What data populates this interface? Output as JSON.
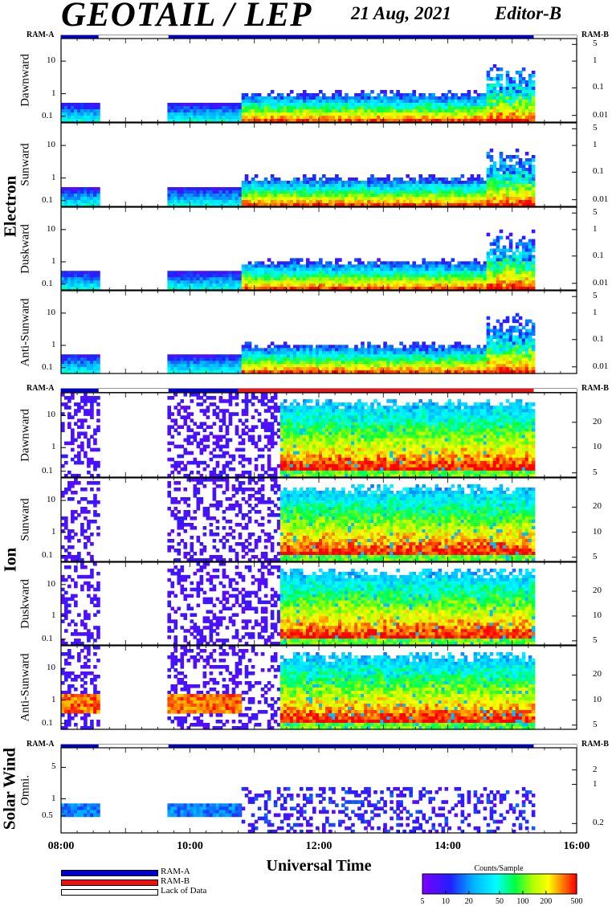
{
  "header": {
    "title": "GEOTAIL / LEP",
    "date": "21 Aug, 2021",
    "editor": "Editor-B"
  },
  "chart_data": {
    "type": "heatmap",
    "x_axis": {
      "label": "Universal Time",
      "ticks": [
        "08:00",
        "10:00",
        "12:00",
        "14:00",
        "16:00"
      ],
      "range": [
        "08:00",
        "16:00"
      ]
    },
    "status_bar_labels": {
      "left": "RAM-A",
      "right": "RAM-B"
    },
    "groups": [
      {
        "name": "Electron",
        "status_segments": [
          {
            "from": "08:00",
            "to": "08:35",
            "state": "RAM-A"
          },
          {
            "from": "08:35",
            "to": "09:40",
            "state": "Lack of Data"
          },
          {
            "from": "09:40",
            "to": "15:20",
            "state": "RAM-A"
          },
          {
            "from": "15:20",
            "to": "16:00",
            "state": "Lack of Data"
          }
        ],
        "panels": [
          {
            "name": "Dawnward",
            "left_ticks": [
              "10",
              "1",
              "0.1"
            ],
            "right_ticks": [
              "5",
              "1",
              "0.1",
              "0.01"
            ]
          },
          {
            "name": "Sunward",
            "left_ticks": [
              "10",
              "1",
              "0.1"
            ],
            "right_ticks": [
              "5",
              "1",
              "0.1",
              "0.01"
            ]
          },
          {
            "name": "Duskward",
            "left_ticks": [
              "10",
              "1",
              "0.1"
            ],
            "right_ticks": [
              "5",
              "1",
              "0.1",
              "0.01"
            ]
          },
          {
            "name": "Anti-Sunward",
            "left_ticks": [
              "10",
              "1",
              "0.1"
            ],
            "right_ticks": [
              "5",
              "1",
              "0.1",
              "0.01"
            ]
          }
        ]
      },
      {
        "name": "Ion",
        "status_segments": [
          {
            "from": "08:00",
            "to": "08:35",
            "state": "RAM-A"
          },
          {
            "from": "08:35",
            "to": "09:40",
            "state": "Lack of Data"
          },
          {
            "from": "09:40",
            "to": "10:45",
            "state": "RAM-A"
          },
          {
            "from": "10:45",
            "to": "15:20",
            "state": "RAM-B"
          },
          {
            "from": "15:20",
            "to": "16:00",
            "state": "Lack of Data"
          }
        ],
        "panels": [
          {
            "name": "Dawnward",
            "left_ticks": [
              "10",
              "1",
              "0.1"
            ],
            "right_ticks": [
              "20",
              "10",
              "5"
            ]
          },
          {
            "name": "Sunward",
            "left_ticks": [
              "10",
              "1",
              "0.1"
            ],
            "right_ticks": [
              "20",
              "10",
              "5"
            ]
          },
          {
            "name": "Duskward",
            "left_ticks": [
              "10",
              "1",
              "0.1"
            ],
            "right_ticks": [
              "20",
              "10",
              "5"
            ]
          },
          {
            "name": "Anti-Sunward",
            "left_ticks": [
              "10",
              "1",
              "0.1"
            ],
            "right_ticks": [
              "20",
              "10",
              "5"
            ]
          }
        ]
      },
      {
        "name": "Solar Wind",
        "status_segments": [
          {
            "from": "08:00",
            "to": "08:35",
            "state": "RAM-A"
          },
          {
            "from": "08:35",
            "to": "09:40",
            "state": "Lack of Data"
          },
          {
            "from": "09:40",
            "to": "15:20",
            "state": "RAM-A"
          },
          {
            "from": "15:20",
            "to": "16:00",
            "state": "Lack of Data"
          }
        ],
        "panels": [
          {
            "name": "Omni.",
            "left_ticks": [
              "5",
              "1",
              "0.5"
            ],
            "right_ticks": [
              "2",
              "1",
              "0.2"
            ]
          }
        ]
      }
    ],
    "legend": [
      {
        "label": "RAM-A",
        "color": "#0000cc"
      },
      {
        "label": "RAM-B",
        "color": "#ee1111"
      },
      {
        "label": "Lack of Data",
        "color": "#ffffff"
      }
    ],
    "colorbar": {
      "title": "Counts/Sample",
      "ticks": [
        "5",
        "10",
        "20",
        "50",
        "100",
        "200",
        "500"
      ],
      "scale": "log"
    }
  }
}
